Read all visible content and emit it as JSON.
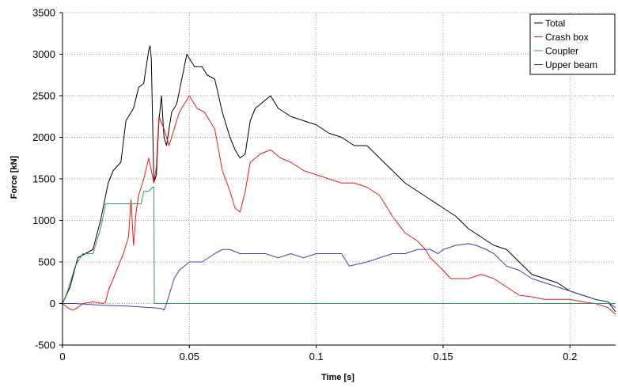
{
  "chart_data": {
    "type": "line",
    "xlabel": "Time [s]",
    "ylabel": "Force [kN]",
    "xlim": [
      0,
      0.218
    ],
    "ylim": [
      -500,
      3500
    ],
    "x_ticks": [
      "0",
      "0.05",
      "0.1",
      "0.15",
      "0.2"
    ],
    "x_tick_values": [
      0,
      0.05,
      0.1,
      0.15,
      0.2
    ],
    "y_ticks": [
      "-500",
      "0",
      "500",
      "1000",
      "1500",
      "2000",
      "2500",
      "3000",
      "3500"
    ],
    "y_tick_values": [
      -500,
      0,
      500,
      1000,
      1500,
      2000,
      2500,
      3000,
      3500
    ],
    "grid": true,
    "legend_position": "top-right",
    "series": [
      {
        "name": "Total",
        "color": "#000000",
        "points": [
          [
            0,
            0
          ],
          [
            0.003,
            200
          ],
          [
            0.006,
            550
          ],
          [
            0.009,
            600
          ],
          [
            0.012,
            650
          ],
          [
            0.015,
            1000
          ],
          [
            0.018,
            1450
          ],
          [
            0.02,
            1600
          ],
          [
            0.023,
            1700
          ],
          [
            0.025,
            2200
          ],
          [
            0.028,
            2350
          ],
          [
            0.03,
            2600
          ],
          [
            0.032,
            2650
          ],
          [
            0.034,
            3050
          ],
          [
            0.0345,
            3100
          ],
          [
            0.035,
            2950
          ],
          [
            0.036,
            1450
          ],
          [
            0.037,
            1550
          ],
          [
            0.038,
            2200
          ],
          [
            0.039,
            2500
          ],
          [
            0.04,
            2000
          ],
          [
            0.041,
            1900
          ],
          [
            0.043,
            2300
          ],
          [
            0.045,
            2400
          ],
          [
            0.047,
            2700
          ],
          [
            0.049,
            3000
          ],
          [
            0.052,
            2850
          ],
          [
            0.055,
            2850
          ],
          [
            0.057,
            2750
          ],
          [
            0.06,
            2700
          ],
          [
            0.063,
            2300
          ],
          [
            0.066,
            2000
          ],
          [
            0.068,
            1850
          ],
          [
            0.07,
            1750
          ],
          [
            0.072,
            1800
          ],
          [
            0.074,
            2200
          ],
          [
            0.076,
            2350
          ],
          [
            0.08,
            2450
          ],
          [
            0.082,
            2500
          ],
          [
            0.085,
            2350
          ],
          [
            0.09,
            2250
          ],
          [
            0.095,
            2200
          ],
          [
            0.1,
            2150
          ],
          [
            0.105,
            2050
          ],
          [
            0.11,
            2000
          ],
          [
            0.115,
            1900
          ],
          [
            0.12,
            1900
          ],
          [
            0.125,
            1750
          ],
          [
            0.13,
            1600
          ],
          [
            0.135,
            1450
          ],
          [
            0.14,
            1350
          ],
          [
            0.145,
            1250
          ],
          [
            0.15,
            1150
          ],
          [
            0.155,
            1050
          ],
          [
            0.16,
            900
          ],
          [
            0.165,
            800
          ],
          [
            0.17,
            700
          ],
          [
            0.175,
            650
          ],
          [
            0.18,
            500
          ],
          [
            0.185,
            350
          ],
          [
            0.19,
            300
          ],
          [
            0.195,
            250
          ],
          [
            0.2,
            150
          ],
          [
            0.205,
            100
          ],
          [
            0.21,
            50
          ],
          [
            0.215,
            20
          ],
          [
            0.218,
            -100
          ]
        ]
      },
      {
        "name": "Crash box",
        "color": "#e8191c",
        "points": [
          [
            0,
            0
          ],
          [
            0.002,
            -50
          ],
          [
            0.004,
            -80
          ],
          [
            0.006,
            -50
          ],
          [
            0.008,
            0
          ],
          [
            0.012,
            20
          ],
          [
            0.016,
            0
          ],
          [
            0.017,
            20
          ],
          [
            0.018,
            150
          ],
          [
            0.02,
            300
          ],
          [
            0.022,
            450
          ],
          [
            0.024,
            600
          ],
          [
            0.026,
            800
          ],
          [
            0.027,
            1250
          ],
          [
            0.028,
            700
          ],
          [
            0.029,
            1100
          ],
          [
            0.03,
            1300
          ],
          [
            0.032,
            1500
          ],
          [
            0.034,
            1750
          ],
          [
            0.035,
            1600
          ],
          [
            0.036,
            1450
          ],
          [
            0.037,
            1650
          ],
          [
            0.038,
            2250
          ],
          [
            0.04,
            2100
          ],
          [
            0.042,
            1900
          ],
          [
            0.044,
            2100
          ],
          [
            0.046,
            2300
          ],
          [
            0.048,
            2400
          ],
          [
            0.05,
            2500
          ],
          [
            0.053,
            2350
          ],
          [
            0.056,
            2300
          ],
          [
            0.06,
            2100
          ],
          [
            0.063,
            1600
          ],
          [
            0.066,
            1350
          ],
          [
            0.068,
            1150
          ],
          [
            0.07,
            1100
          ],
          [
            0.072,
            1350
          ],
          [
            0.074,
            1700
          ],
          [
            0.078,
            1800
          ],
          [
            0.082,
            1850
          ],
          [
            0.086,
            1750
          ],
          [
            0.09,
            1700
          ],
          [
            0.095,
            1600
          ],
          [
            0.1,
            1550
          ],
          [
            0.105,
            1500
          ],
          [
            0.11,
            1450
          ],
          [
            0.115,
            1450
          ],
          [
            0.12,
            1400
          ],
          [
            0.125,
            1300
          ],
          [
            0.13,
            1050
          ],
          [
            0.135,
            850
          ],
          [
            0.14,
            750
          ],
          [
            0.143,
            650
          ],
          [
            0.145,
            550
          ],
          [
            0.15,
            400
          ],
          [
            0.153,
            300
          ],
          [
            0.156,
            300
          ],
          [
            0.16,
            300
          ],
          [
            0.165,
            350
          ],
          [
            0.17,
            300
          ],
          [
            0.175,
            200
          ],
          [
            0.18,
            100
          ],
          [
            0.185,
            80
          ],
          [
            0.19,
            50
          ],
          [
            0.195,
            50
          ],
          [
            0.2,
            50
          ],
          [
            0.205,
            20
          ],
          [
            0.21,
            0
          ],
          [
            0.215,
            -50
          ],
          [
            0.218,
            -130
          ]
        ]
      },
      {
        "name": "Coupler",
        "color": "#2e9a5e",
        "points": [
          [
            0,
            0
          ],
          [
            0.002,
            150
          ],
          [
            0.005,
            450
          ],
          [
            0.008,
            600
          ],
          [
            0.012,
            600
          ],
          [
            0.015,
            900
          ],
          [
            0.017,
            1200
          ],
          [
            0.025,
            1200
          ],
          [
            0.031,
            1200
          ],
          [
            0.032,
            1350
          ],
          [
            0.034,
            1350
          ],
          [
            0.0355,
            1400
          ],
          [
            0.036,
            1400
          ],
          [
            0.0362,
            0
          ],
          [
            0.218,
            0
          ]
        ]
      },
      {
        "name": "Upper beam",
        "color": "#3f3fae",
        "points": [
          [
            0,
            0
          ],
          [
            0.005,
            0
          ],
          [
            0.015,
            -20
          ],
          [
            0.025,
            -30
          ],
          [
            0.035,
            -50
          ],
          [
            0.039,
            -60
          ],
          [
            0.04,
            -80
          ],
          [
            0.041,
            0
          ],
          [
            0.042,
            100
          ],
          [
            0.044,
            300
          ],
          [
            0.046,
            400
          ],
          [
            0.048,
            450
          ],
          [
            0.05,
            500
          ],
          [
            0.055,
            500
          ],
          [
            0.06,
            600
          ],
          [
            0.063,
            650
          ],
          [
            0.066,
            650
          ],
          [
            0.07,
            600
          ],
          [
            0.075,
            600
          ],
          [
            0.08,
            600
          ],
          [
            0.085,
            550
          ],
          [
            0.09,
            600
          ],
          [
            0.095,
            550
          ],
          [
            0.1,
            600
          ],
          [
            0.105,
            600
          ],
          [
            0.11,
            600
          ],
          [
            0.113,
            450
          ],
          [
            0.12,
            500
          ],
          [
            0.125,
            550
          ],
          [
            0.13,
            600
          ],
          [
            0.135,
            600
          ],
          [
            0.14,
            650
          ],
          [
            0.145,
            650
          ],
          [
            0.148,
            600
          ],
          [
            0.15,
            650
          ],
          [
            0.155,
            700
          ],
          [
            0.16,
            720
          ],
          [
            0.163,
            700
          ],
          [
            0.167,
            650
          ],
          [
            0.17,
            600
          ],
          [
            0.175,
            450
          ],
          [
            0.18,
            400
          ],
          [
            0.185,
            300
          ],
          [
            0.19,
            250
          ],
          [
            0.195,
            200
          ],
          [
            0.2,
            150
          ],
          [
            0.205,
            100
          ],
          [
            0.21,
            50
          ],
          [
            0.215,
            20
          ],
          [
            0.218,
            -50
          ]
        ]
      }
    ]
  }
}
